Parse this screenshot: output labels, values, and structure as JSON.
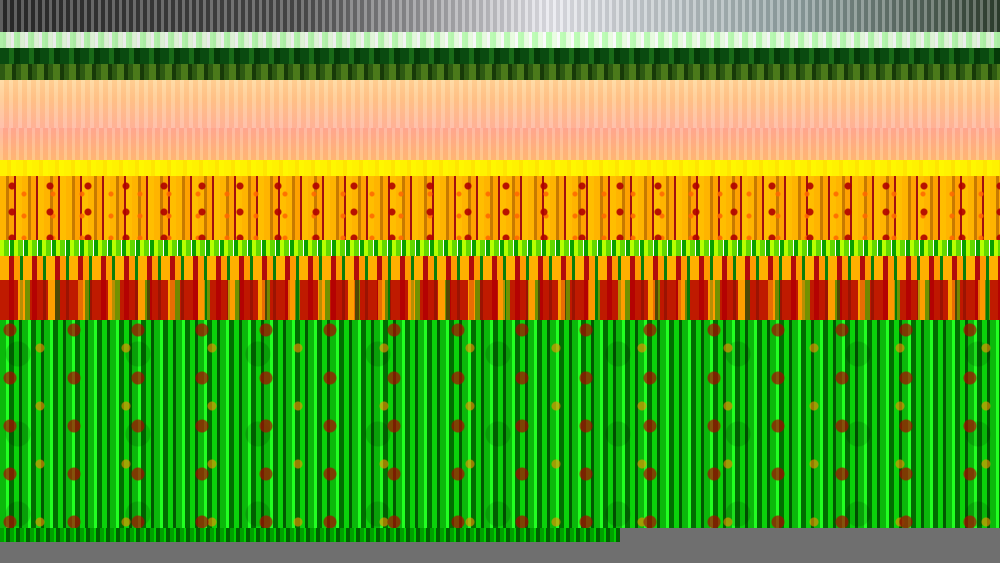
{
  "image": {
    "kind": "photo",
    "dominant_colors": {
      "sky_gray": "#6b6b6b",
      "pale": "#e9ffe0",
      "dark_green": "#0a4a10",
      "peach": "#ffc88e",
      "yellow": "#fff200",
      "mustard": "#ffb000",
      "red": "#b10b0b",
      "green": "#0bb80b",
      "bottom_gray": "#6f6f6f"
    }
  }
}
